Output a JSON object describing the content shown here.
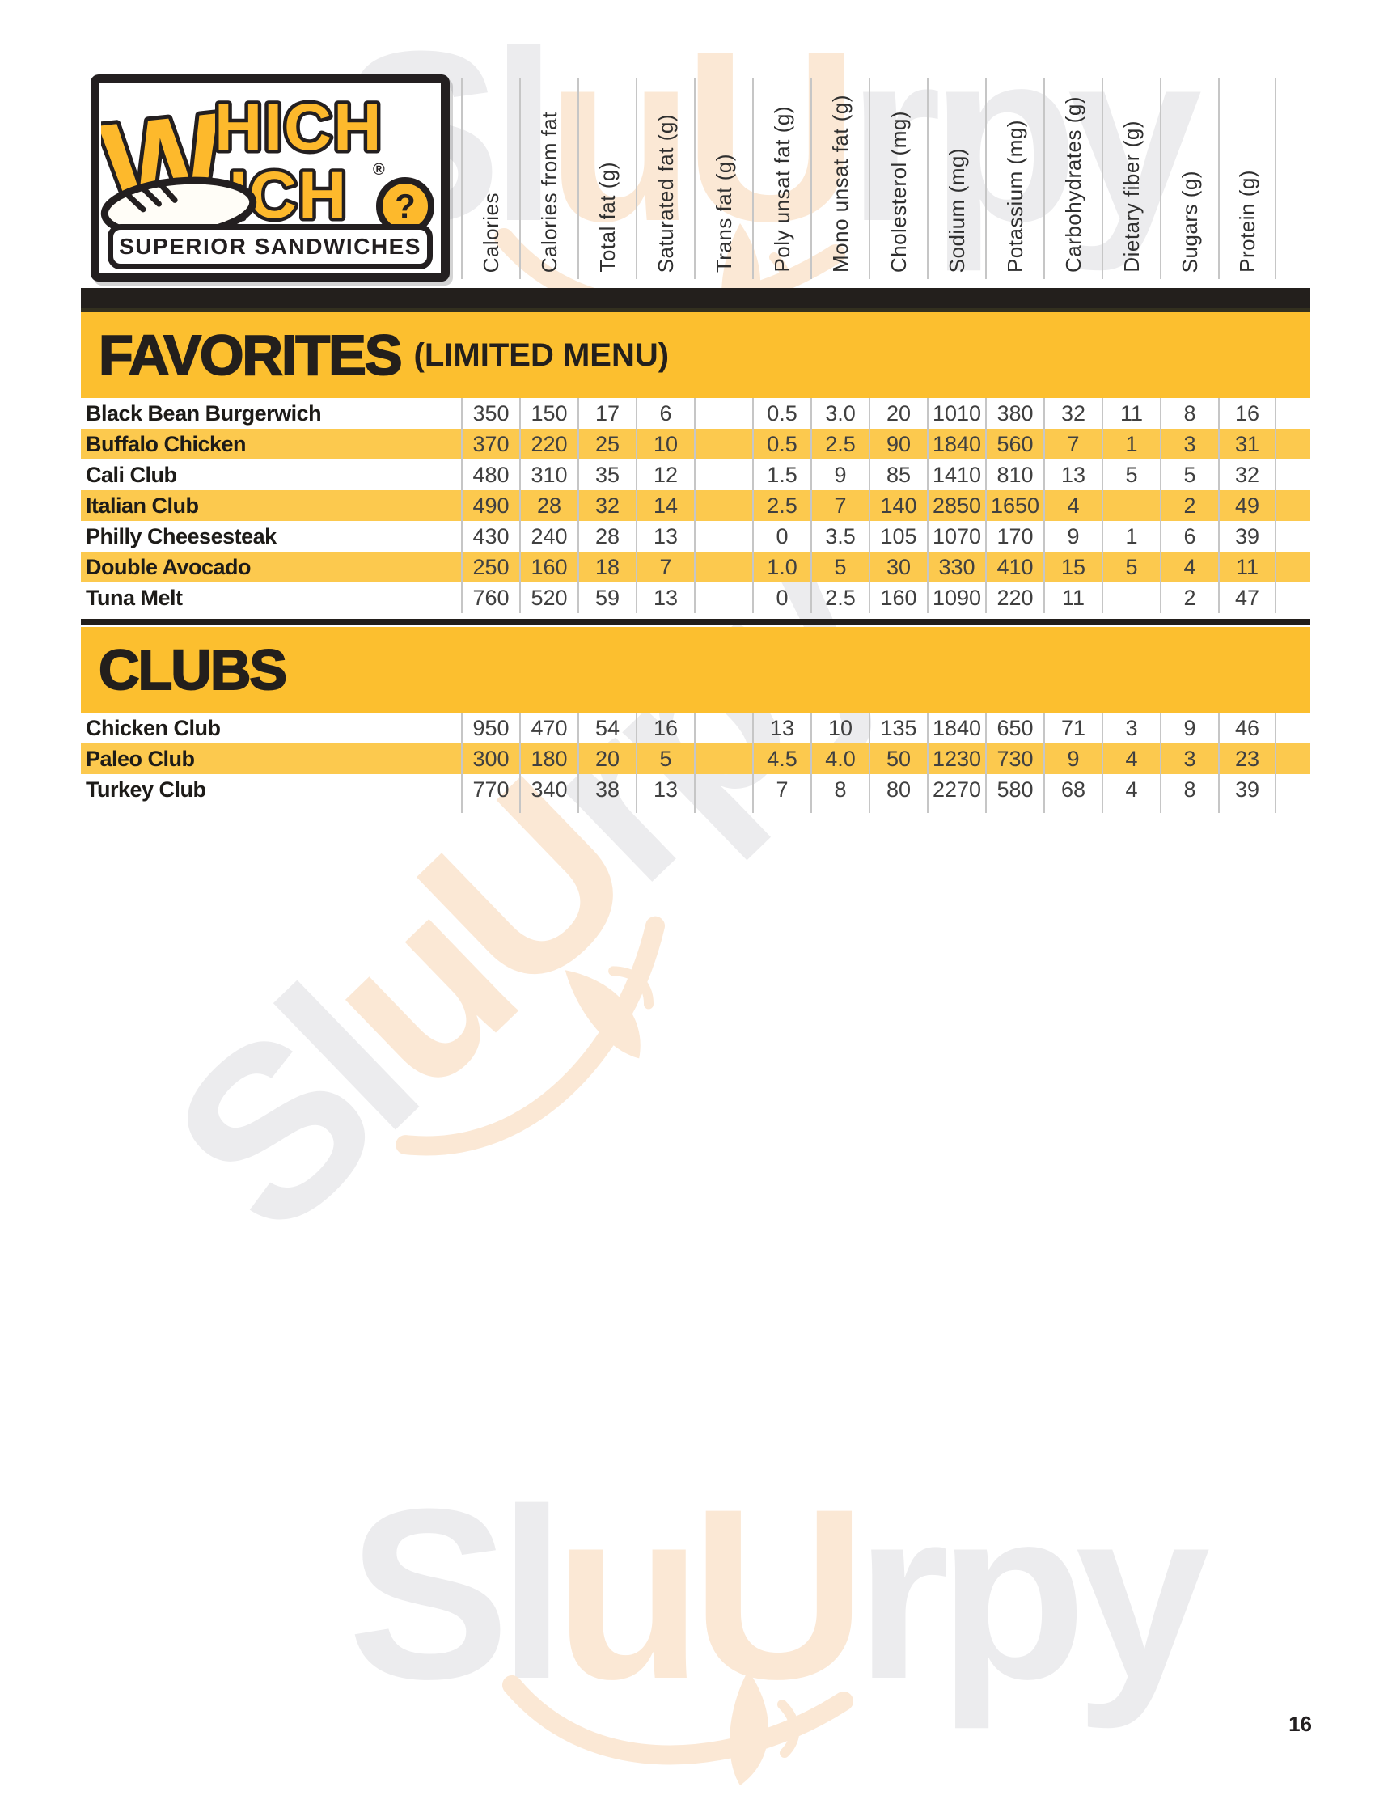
{
  "page": {
    "number": "16"
  },
  "logo": {
    "big_w": "W",
    "line1": "HICH",
    "line2": "ICH",
    "registered": "®",
    "question_mark": "?",
    "tagline": "SUPERIOR SANDWICHES"
  },
  "watermark": {
    "part1": "Sl",
    "part2": "uU",
    "part3": "rpy"
  },
  "colors": {
    "brand_yellow": "#FDB92C",
    "band_yellow": "#FCBF2F",
    "stripe_yellow": "#FCC94E",
    "bar_black": "#231F1C",
    "line_gray": "#C6C6C6",
    "watermark_gray": "#ECECEE",
    "watermark_peach": "#FBE8D5"
  },
  "table": {
    "columns": [
      "Calories",
      "Calories from fat",
      "Total fat (g)",
      "Saturated fat (g)",
      "Trans fat (g)",
      "Poly unsat fat (g)",
      "Mono unsat fat (g)",
      "Cholesterol (mg)",
      "Sodium (mg)",
      "Potassium (mg)",
      "Carbohydrates (g)",
      "Dietary fiber (g)",
      "Sugars (g)",
      "Protein (g)"
    ],
    "sections": [
      {
        "title": "FAVORITES",
        "subtitle": "(LIMITED MENU)",
        "rows": [
          {
            "name": "Black Bean Burgerwich",
            "values": [
              "350",
              "150",
              "17",
              "6",
              "",
              "0.5",
              "3.0",
              "20",
              "1010",
              "380",
              "32",
              "11",
              "8",
              "16"
            ]
          },
          {
            "name": "Buffalo Chicken",
            "values": [
              "370",
              "220",
              "25",
              "10",
              "",
              "0.5",
              "2.5",
              "90",
              "1840",
              "560",
              "7",
              "1",
              "3",
              "31"
            ]
          },
          {
            "name": "Cali Club",
            "values": [
              "480",
              "310",
              "35",
              "12",
              "",
              "1.5",
              "9",
              "85",
              "1410",
              "810",
              "13",
              "5",
              "5",
              "32"
            ]
          },
          {
            "name": "Italian Club",
            "values": [
              "490",
              "28",
              "32",
              "14",
              "",
              "2.5",
              "7",
              "140",
              "2850",
              "1650",
              "4",
              "",
              "2",
              "49"
            ]
          },
          {
            "name": "Philly Cheesesteak",
            "values": [
              "430",
              "240",
              "28",
              "13",
              "",
              "0",
              "3.5",
              "105",
              "1070",
              "170",
              "9",
              "1",
              "6",
              "39"
            ]
          },
          {
            "name": "Double Avocado",
            "values": [
              "250",
              "160",
              "18",
              "7",
              "",
              "1.0",
              "5",
              "30",
              "330",
              "410",
              "15",
              "5",
              "4",
              "11"
            ]
          },
          {
            "name": "Tuna Melt",
            "values": [
              "760",
              "520",
              "59",
              "13",
              "",
              "0",
              "2.5",
              "160",
              "1090",
              "220",
              "11",
              "",
              "2",
              "47"
            ]
          }
        ]
      },
      {
        "title": "CLUBS",
        "subtitle": "",
        "rows": [
          {
            "name": "Chicken Club",
            "values": [
              "950",
              "470",
              "54",
              "16",
              "",
              "13",
              "10",
              "135",
              "1840",
              "650",
              "71",
              "3",
              "9",
              "46"
            ]
          },
          {
            "name": "Paleo Club",
            "values": [
              "300",
              "180",
              "20",
              "5",
              "",
              "4.5",
              "4.0",
              "50",
              "1230",
              "730",
              "9",
              "4",
              "3",
              "23"
            ]
          },
          {
            "name": "Turkey Club",
            "values": [
              "770",
              "340",
              "38",
              "13",
              "",
              "7",
              "8",
              "80",
              "2270",
              "580",
              "68",
              "4",
              "8",
              "39"
            ]
          }
        ]
      }
    ]
  }
}
